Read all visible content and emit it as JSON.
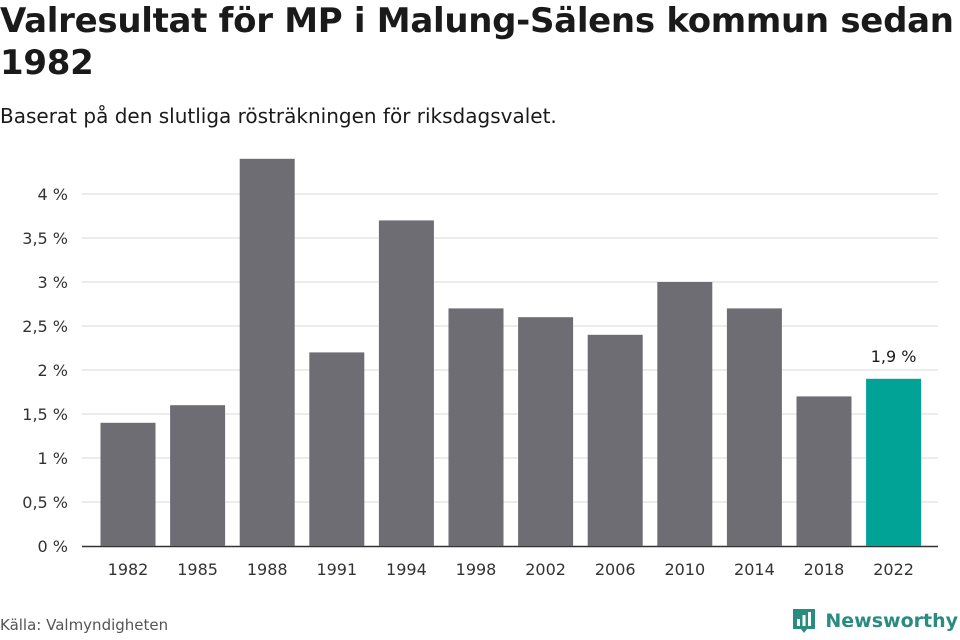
{
  "title": "Valresultat för MP i Malung-Sälens kommun sedan 1982",
  "subtitle": "Baserat på den slutliga rösträkningen för riksdagsvalet.",
  "source": "Källa: Valmyndigheten",
  "brand": {
    "name": "Newsworthy",
    "icon": "newsworthy-logo-icon",
    "color": "#2a8c80"
  },
  "chart_data": {
    "type": "bar",
    "title": "Valresultat för MP i Malung-Sälens kommun sedan 1982",
    "subtitle": "Baserat på den slutliga rösträkningen för riksdagsvalet.",
    "categories": [
      "1982",
      "1985",
      "1988",
      "1991",
      "1994",
      "1998",
      "2002",
      "2006",
      "2010",
      "2014",
      "2018",
      "2022"
    ],
    "values": [
      1.4,
      1.6,
      4.4,
      2.2,
      3.7,
      2.7,
      2.6,
      2.4,
      3.0,
      2.7,
      1.7,
      1.9
    ],
    "unit": "%",
    "ylim": [
      0,
      4.5
    ],
    "yticks": [
      0,
      0.5,
      1,
      1.5,
      2,
      2.5,
      3,
      3.5,
      4
    ],
    "ytick_labels": [
      "0 %",
      "0,5 %",
      "1 %",
      "1,5 %",
      "2 %",
      "2,5 %",
      "3 %",
      "3,5 %",
      "4 %"
    ],
    "grid": true,
    "colors": {
      "default": "#6e6d73",
      "highlight": "#00a395",
      "grid": "#d9d9d9",
      "axis": "#333333"
    },
    "highlight_index": 11,
    "annotations": [
      {
        "category": "2022",
        "text": "1,9 %"
      }
    ]
  }
}
